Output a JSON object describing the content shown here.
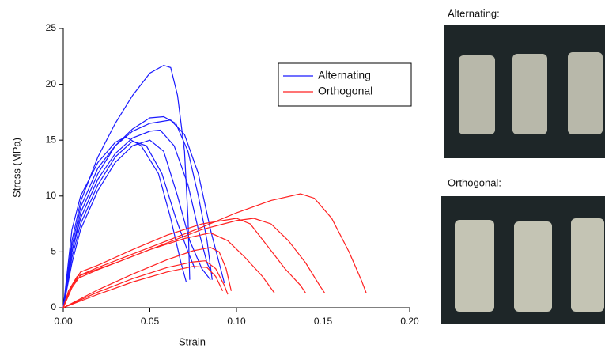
{
  "chart_data": {
    "type": "line",
    "xlabel": "Strain",
    "ylabel": "Stress (MPa)",
    "xlim": [
      0,
      0.2
    ],
    "ylim": [
      0,
      25
    ],
    "xticks": [
      {
        "value": 0,
        "label": "0.00"
      },
      {
        "value": 0.05,
        "label": "0.05"
      },
      {
        "value": 0.1,
        "label": "0.10"
      },
      {
        "value": 0.15,
        "label": "0.15"
      },
      {
        "value": 0.2,
        "label": "0.20"
      }
    ],
    "yticks": [
      0,
      5,
      10,
      15,
      20,
      25
    ],
    "legend": "upper-center",
    "series": [
      {
        "name": "Alternating",
        "color": "#1a1aff",
        "curves": [
          {
            "x": [
              0,
              0.005,
              0.01,
              0.02,
              0.03,
              0.04,
              0.05,
              0.058,
              0.062,
              0.066,
              0.07,
              0.072,
              0.073
            ],
            "values": [
              0,
              6,
              9.5,
              13.5,
              16.5,
              19,
              21,
              21.7,
              21.5,
              19,
              14,
              8,
              2.5
            ]
          },
          {
            "x": [
              0,
              0.005,
              0.01,
              0.02,
              0.03,
              0.04,
              0.05,
              0.058,
              0.065,
              0.072,
              0.078,
              0.083,
              0.086
            ],
            "values": [
              0,
              5,
              8.5,
              12,
              14.5,
              16,
              17,
              17.1,
              16.5,
              14,
              10,
              6,
              2.5
            ]
          },
          {
            "x": [
              0,
              0.005,
              0.01,
              0.02,
              0.03,
              0.04,
              0.05,
              0.062,
              0.07,
              0.078,
              0.085,
              0.09,
              0.093
            ],
            "values": [
              0,
              5.5,
              9,
              12.5,
              14.5,
              15.8,
              16.5,
              16.8,
              15.5,
              12,
              7,
              4,
              2.2
            ]
          },
          {
            "x": [
              0,
              0.005,
              0.01,
              0.02,
              0.03,
              0.036,
              0.045,
              0.055,
              0.062,
              0.068,
              0.071
            ],
            "values": [
              0,
              7,
              10,
              13,
              14.8,
              15.3,
              14.5,
              12,
              8,
              4,
              2.3
            ]
          },
          {
            "x": [
              0,
              0.005,
              0.01,
              0.02,
              0.03,
              0.04,
              0.05,
              0.056,
              0.064,
              0.072,
              0.078,
              0.083,
              0.086
            ],
            "values": [
              0,
              5,
              8,
              11.5,
              13.8,
              15.2,
              15.8,
              15.9,
              14.5,
              11,
              7,
              4,
              3
            ]
          },
          {
            "x": [
              0,
              0.005,
              0.01,
              0.02,
              0.03,
              0.04,
              0.048,
              0.057,
              0.065,
              0.072,
              0.076
            ],
            "values": [
              0,
              4.5,
              7.5,
              11,
              13.5,
              14.9,
              14.5,
              12,
              8,
              5,
              3.5
            ]
          },
          {
            "x": [
              0,
              0.005,
              0.01,
              0.02,
              0.03,
              0.04,
              0.05,
              0.058,
              0.066,
              0.073,
              0.08,
              0.085
            ],
            "values": [
              0,
              4,
              7,
              10.5,
              13,
              14.5,
              15,
              14,
              10,
              6,
              3.5,
              2.5
            ]
          }
        ]
      },
      {
        "name": "Orthogonal",
        "color": "#ff2020",
        "curves": [
          {
            "x": [
              0,
              0.003,
              0.008,
              0.02,
              0.04,
              0.06,
              0.08,
              0.1,
              0.12,
              0.137,
              0.145,
              0.155,
              0.165,
              0.172,
              0.175
            ],
            "values": [
              0,
              1.5,
              2.8,
              3.6,
              4.8,
              6,
              7.2,
              8.5,
              9.6,
              10.2,
              9.8,
              8,
              5,
              2.5,
              1.3
            ]
          },
          {
            "x": [
              0,
              0.003,
              0.008,
              0.02,
              0.04,
              0.06,
              0.08,
              0.1,
              0.11,
              0.12,
              0.13,
              0.14,
              0.148,
              0.151
            ],
            "values": [
              0,
              1.3,
              2.6,
              3.4,
              4.6,
              5.8,
              7,
              7.8,
              8,
              7.5,
              6,
              4,
              2,
              1.3
            ]
          },
          {
            "x": [
              0,
              0.005,
              0.01,
              0.02,
              0.04,
              0.06,
              0.08,
              0.1,
              0.108,
              0.118,
              0.128,
              0.137,
              0.14
            ],
            "values": [
              0,
              2,
              3.2,
              3.8,
              5.2,
              6.5,
              7.5,
              8,
              7.5,
              5.5,
              3.5,
              2,
              1.3
            ]
          },
          {
            "x": [
              0,
              0.005,
              0.01,
              0.03,
              0.05,
              0.07,
              0.085,
              0.095,
              0.105,
              0.115,
              0.122
            ],
            "values": [
              0,
              1.8,
              2.9,
              4,
              5.2,
              6.2,
              6.7,
              6,
              4.5,
              2.8,
              1.3
            ]
          },
          {
            "x": [
              0,
              0.01,
              0.02,
              0.04,
              0.06,
              0.075,
              0.085,
              0.09,
              0.094,
              0.097
            ],
            "values": [
              0,
              0.8,
              1.6,
              3,
              4.3,
              5.1,
              5.4,
              5,
              3.5,
              1.5
            ]
          },
          {
            "x": [
              0,
              0.01,
              0.02,
              0.04,
              0.06,
              0.075,
              0.082,
              0.088,
              0.093,
              0.095
            ],
            "values": [
              0,
              0.7,
              1.4,
              2.6,
              3.6,
              4.1,
              4.2,
              3.5,
              2,
              1.2
            ]
          },
          {
            "x": [
              0,
              0.01,
              0.02,
              0.04,
              0.06,
              0.075,
              0.083,
              0.088,
              0.092
            ],
            "values": [
              0,
              0.6,
              1.2,
              2.3,
              3.2,
              3.7,
              3.6,
              2.8,
              1.5
            ]
          }
        ]
      }
    ]
  },
  "panels": [
    {
      "label": "Alternating:"
    },
    {
      "label": "Orthogonal:"
    }
  ]
}
